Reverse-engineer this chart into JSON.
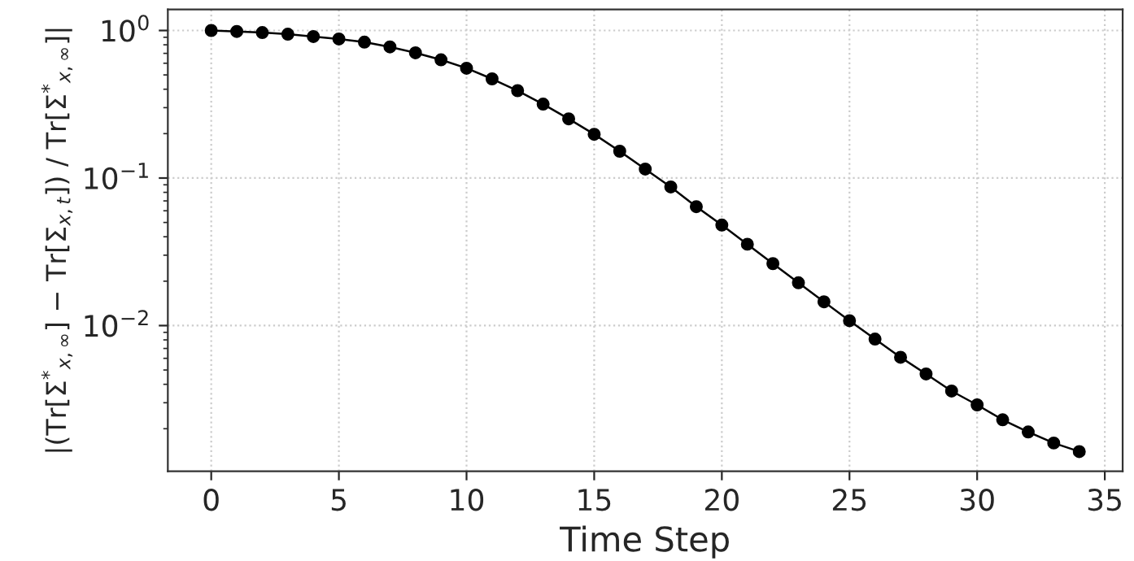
{
  "chart_data": {
    "type": "line",
    "xlabel": "Time Step",
    "ylabel": "|(Tr[Σ$^{*}$$_{x,∞}$] − Tr[Σ$_{x,t}$]) / Tr[Σ$^{*}$$_{x,∞}$]|",
    "x": [
      0,
      1,
      2,
      3,
      4,
      5,
      6,
      7,
      8,
      9,
      10,
      11,
      12,
      13,
      14,
      15,
      16,
      17,
      18,
      19,
      20,
      21,
      22,
      23,
      24,
      25,
      26,
      27,
      28,
      29,
      30,
      31,
      32,
      33,
      34
    ],
    "series": [
      {
        "color": "#000000",
        "values": [
          1.0,
          0.985,
          0.968,
          0.944,
          0.91,
          0.876,
          0.834,
          0.774,
          0.706,
          0.633,
          0.555,
          0.47,
          0.391,
          0.317,
          0.252,
          0.198,
          0.152,
          0.115,
          0.087,
          0.064,
          0.048,
          0.0356,
          0.0263,
          0.0195,
          0.0145,
          0.0108,
          0.0081,
          0.0061,
          0.0047,
          0.0036,
          0.0029,
          0.0023,
          0.0019,
          0.0016,
          0.0014
        ]
      }
    ],
    "log": "y",
    "xlim": [
      -1.7,
      35.7
    ],
    "ylim": [
      0.00103,
      1.387
    ],
    "xticks": [
      0,
      5,
      10,
      15,
      20,
      25,
      30,
      35
    ],
    "yticks": [
      {
        "value": 0.01,
        "label": "10$^{−2}$"
      },
      {
        "value": 0.1,
        "label": "10$^{−1}$"
      },
      {
        "value": 1,
        "label": "10$^{0}$"
      }
    ],
    "grid": true,
    "marker": "circle",
    "line_style": "solid"
  }
}
